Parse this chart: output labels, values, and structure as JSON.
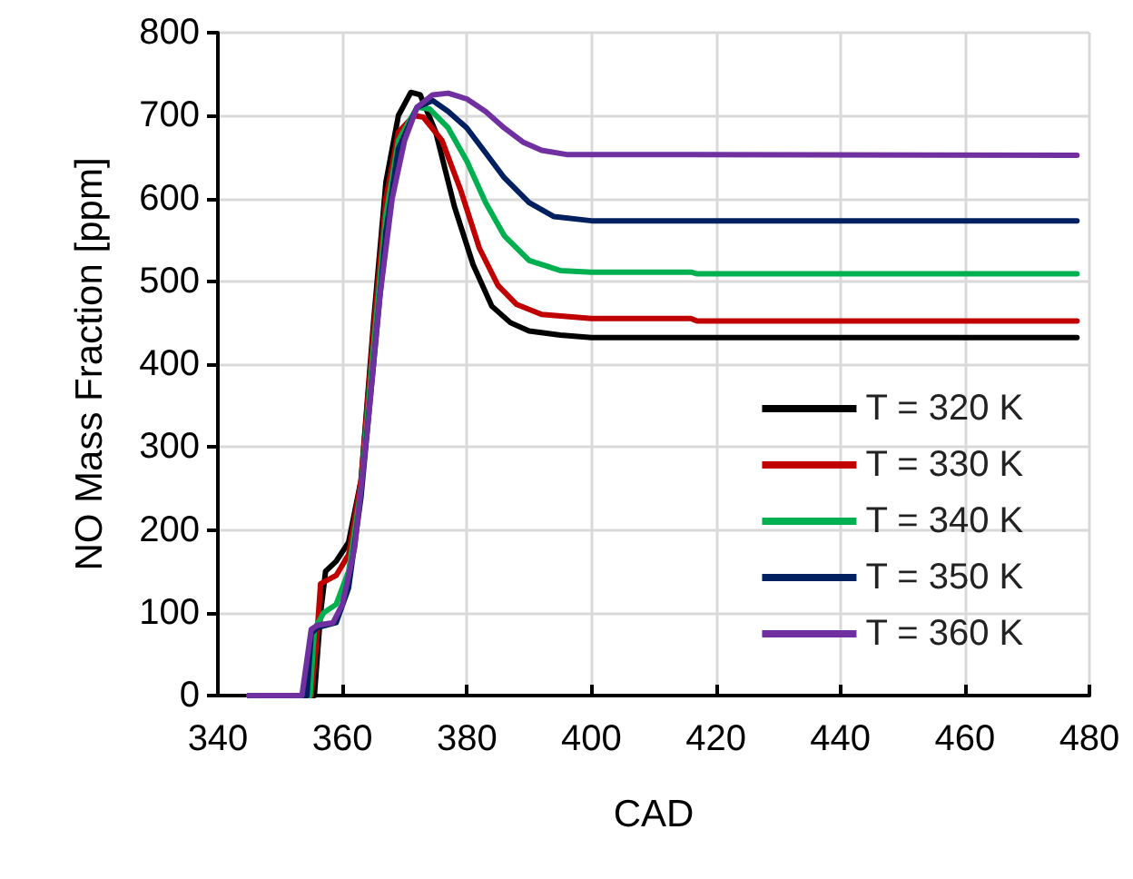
{
  "chart_data": {
    "type": "line",
    "xlabel": "CAD",
    "ylabel": "NO Mass Fraction [ppm]",
    "xlim": [
      340,
      480
    ],
    "xticks": [
      340,
      360,
      380,
      400,
      420,
      440,
      460,
      480
    ],
    "ylim": [
      0,
      800
    ],
    "yticks": [
      0,
      100,
      200,
      300,
      400,
      500,
      600,
      700,
      800
    ],
    "grid": true,
    "legend": "right",
    "marker": "none",
    "line_style": "solid",
    "series": [
      {
        "name": "T = 320 K",
        "color": "#000000",
        "x": [
          345,
          354,
          355.5,
          356.5,
          357.3,
          359,
          361,
          363,
          365,
          367,
          369,
          371,
          372.5,
          375,
          378,
          381,
          384,
          387,
          390,
          395,
          400,
          478
        ],
        "values": [
          0,
          0,
          0,
          100,
          150,
          162,
          185,
          260,
          450,
          620,
          700,
          728,
          725,
          680,
          590,
          520,
          470,
          450,
          440,
          435,
          432,
          432
        ]
      },
      {
        "name": "T = 330 K",
        "color": "#c00000",
        "x": [
          345,
          355,
          355.8,
          356.5,
          359,
          361,
          363,
          365,
          367,
          369,
          371.5,
          373,
          376,
          379,
          382,
          385,
          388,
          392,
          400,
          416,
          417,
          478
        ],
        "values": [
          0,
          0,
          60,
          135,
          145,
          170,
          260,
          440,
          600,
          680,
          700,
          698,
          670,
          610,
          540,
          495,
          472,
          460,
          455,
          455,
          452,
          452
        ]
      },
      {
        "name": "T = 340 K",
        "color": "#00b050",
        "x": [
          345,
          354.8,
          355.5,
          357,
          359,
          361,
          363,
          365,
          367,
          369,
          372,
          374,
          377,
          380,
          383,
          386,
          390,
          395,
          400,
          416,
          417,
          478
        ],
        "values": [
          0,
          0,
          80,
          100,
          110,
          150,
          250,
          420,
          580,
          670,
          710,
          708,
          685,
          645,
          595,
          555,
          525,
          513,
          511,
          511,
          509,
          509
        ]
      },
      {
        "name": "T = 350 K",
        "color": "#002060",
        "x": [
          345,
          354.3,
          355,
          356,
          359,
          361,
          363,
          365,
          367,
          369,
          372,
          374.5,
          377,
          380,
          383,
          386,
          390,
          394,
          400,
          478
        ],
        "values": [
          0,
          0,
          75,
          82,
          88,
          130,
          240,
          400,
          560,
          660,
          710,
          718,
          705,
          685,
          655,
          625,
          595,
          578,
          573,
          573
        ]
      },
      {
        "name": "T = 360 K",
        "color": "#7030a0",
        "x": [
          345,
          353.5,
          355,
          356,
          358.5,
          360,
          362,
          364,
          366,
          368,
          370,
          372,
          374.5,
          377,
          380,
          383,
          386,
          389,
          392,
          396,
          478
        ],
        "values": [
          0,
          0,
          80,
          85,
          88,
          110,
          180,
          320,
          480,
          600,
          670,
          710,
          725,
          727,
          720,
          705,
          685,
          668,
          658,
          653,
          652
        ]
      }
    ]
  }
}
